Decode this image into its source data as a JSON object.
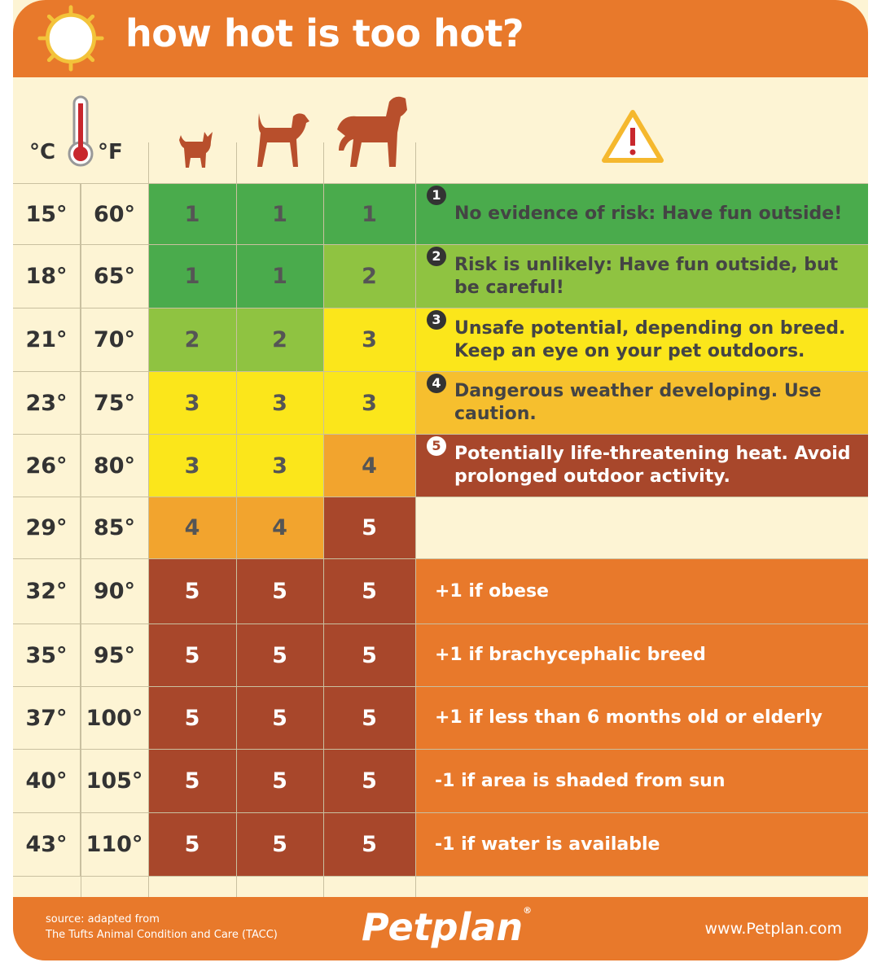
{
  "header": {
    "title": "how hot is too hot?"
  },
  "units": {
    "celsius": "°C",
    "fahrenheit": "°F"
  },
  "colors": {
    "level1": "#4aab4c",
    "level2": "#8fc341",
    "level3": "#fbe61b",
    "level4": "#f2a42e",
    "level5": "#a8472b",
    "desc4": "#f6bf2e",
    "modifier": "#e8792b",
    "header": "#e8792b",
    "background": "#fdf4d4"
  },
  "rows": [
    {
      "c": "15°",
      "f": "60°",
      "small": "1",
      "medium": "1",
      "large": "1",
      "desc_num": "1",
      "desc": "No evidence of risk: Have fun outside!"
    },
    {
      "c": "18°",
      "f": "65°",
      "small": "1",
      "medium": "1",
      "large": "2",
      "desc_num": "2",
      "desc": "Risk is unlikely: Have fun outside, but be careful!"
    },
    {
      "c": "21°",
      "f": "70°",
      "small": "2",
      "medium": "2",
      "large": "3",
      "desc_num": "3",
      "desc": "Unsafe potential, depending on breed. Keep an eye on your pet outdoors."
    },
    {
      "c": "23°",
      "f": "75°",
      "small": "3",
      "medium": "3",
      "large": "3",
      "desc_num": "4",
      "desc": "Dangerous weather developing. Use caution."
    },
    {
      "c": "26°",
      "f": "80°",
      "small": "3",
      "medium": "3",
      "large": "4",
      "desc_num": "5",
      "desc": "Potentially life-threatening heat. Avoid prolonged outdoor activity."
    },
    {
      "c": "29°",
      "f": "85°",
      "small": "4",
      "medium": "4",
      "large": "5",
      "desc": ""
    },
    {
      "c": "32°",
      "f": "90°",
      "small": "5",
      "medium": "5",
      "large": "5",
      "desc": "+1 if obese"
    },
    {
      "c": "35°",
      "f": "95°",
      "small": "5",
      "medium": "5",
      "large": "5",
      "desc": "+1 if brachycephalic breed"
    },
    {
      "c": "37°",
      "f": "100°",
      "small": "5",
      "medium": "5",
      "large": "5",
      "desc": "+1 if less than 6 months old or elderly"
    },
    {
      "c": "40°",
      "f": "105°",
      "small": "5",
      "medium": "5",
      "large": "5",
      "desc": "-1 if area is shaded from sun"
    },
    {
      "c": "43°",
      "f": "110°",
      "small": "5",
      "medium": "5",
      "large": "5",
      "desc": "-1 if water is available"
    }
  ],
  "footer": {
    "source_line1": "source: adapted from",
    "source_line2": "The Tufts Animal Condition and Care (TACC)",
    "logo": "Petplan",
    "url": "www.Petplan.com"
  }
}
